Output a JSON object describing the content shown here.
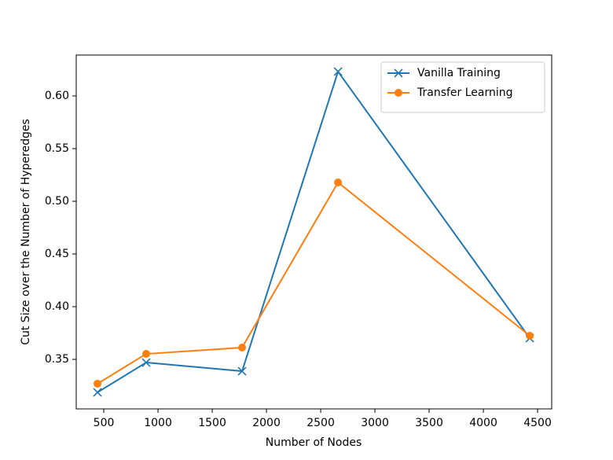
{
  "chart_data": {
    "type": "line",
    "xlabel": "Number of Nodes",
    "ylabel": "Cut Size over the Number of Hyperedges",
    "x": [
      442,
      891,
      1775,
      2660,
      4428
    ],
    "series": [
      {
        "name": "Vanilla Training",
        "color": "#1f77b4",
        "marker": "x",
        "values": [
          0.3187,
          0.347,
          0.3388,
          0.6231,
          0.3701
        ]
      },
      {
        "name": "Transfer Learning",
        "color": "#ff7f0e",
        "marker": "o",
        "values": [
          0.3269,
          0.3552,
          0.3612,
          0.5179,
          0.3724
        ]
      }
    ],
    "xlim": [
      246,
      4630
    ],
    "xticks": [
      500,
      1000,
      1500,
      2000,
      2500,
      3000,
      3500,
      4000,
      4500
    ],
    "ylim": [
      0.303,
      0.6388
    ],
    "yticks": [
      {
        "value": 0.35,
        "label": "0.35"
      },
      {
        "value": 0.4,
        "label": "0.40"
      },
      {
        "value": 0.45,
        "label": "0.45"
      },
      {
        "value": 0.5,
        "label": "0.50"
      },
      {
        "value": 0.55,
        "label": "0.55"
      },
      {
        "value": 0.6,
        "label": "0.60"
      }
    ],
    "legend": "upper right",
    "grid": false
  }
}
